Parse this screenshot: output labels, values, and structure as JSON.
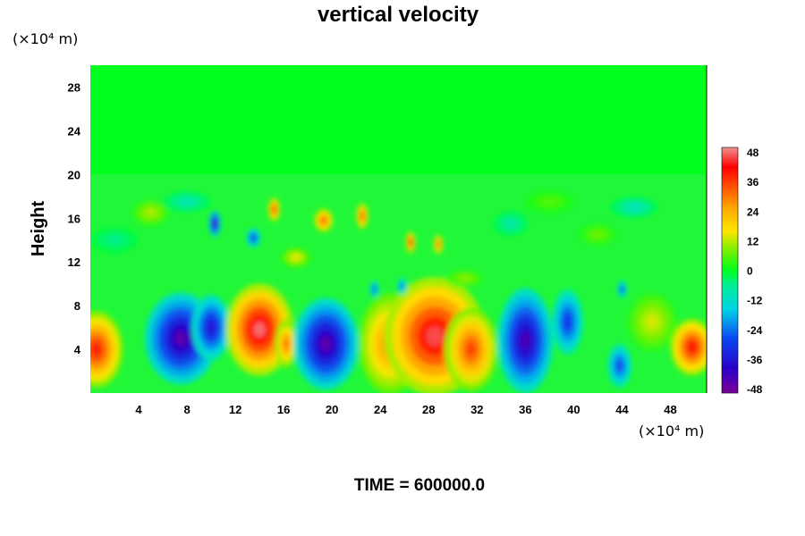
{
  "chart_data": {
    "type": "heatmap",
    "title": "vertical velocity",
    "ylabel": "Height",
    "x_unit": "(×10⁴ m)",
    "y_unit": "(×10⁴ m)",
    "x_ticks": [
      "4",
      "8",
      "12",
      "16",
      "20",
      "24",
      "28",
      "32",
      "36",
      "40",
      "44",
      "48"
    ],
    "y_ticks": [
      "4",
      "8",
      "12",
      "16",
      "20",
      "24",
      "28"
    ],
    "xlim": [
      0,
      51
    ],
    "ylim": [
      0,
      30
    ],
    "colorbar": {
      "ticks": [
        "48",
        "36",
        "24",
        "12",
        "0",
        "-12",
        "-24",
        "-36",
        "-48"
      ],
      "range": [
        -48,
        48
      ]
    },
    "cells": [
      {
        "x": 0.5,
        "y": 4,
        "rx": 2.2,
        "ry": 3.5,
        "v": 38
      },
      {
        "x": 7.5,
        "y": 5.0,
        "rx": 3.0,
        "ry": 4.2,
        "v": -44
      },
      {
        "x": 10.0,
        "y": 6.0,
        "rx": 1.6,
        "ry": 3.0,
        "v": -36
      },
      {
        "x": 14.0,
        "y": 5.8,
        "rx": 2.8,
        "ry": 4.2,
        "v": 46
      },
      {
        "x": 16.2,
        "y": 4.5,
        "rx": 0.9,
        "ry": 2.2,
        "v": 30
      },
      {
        "x": 19.5,
        "y": 4.5,
        "rx": 2.7,
        "ry": 4.2,
        "v": -44
      },
      {
        "x": 24.8,
        "y": 4.5,
        "rx": 2.6,
        "ry": 4.6,
        "v": 28
      },
      {
        "x": 28.5,
        "y": 5.2,
        "rx": 4.2,
        "ry": 5.4,
        "v": 44
      },
      {
        "x": 31.5,
        "y": 4.0,
        "rx": 2.2,
        "ry": 3.8,
        "v": 34
      },
      {
        "x": 36.0,
        "y": 4.8,
        "rx": 2.3,
        "ry": 4.8,
        "v": -42
      },
      {
        "x": 39.5,
        "y": 6.5,
        "rx": 1.3,
        "ry": 3.0,
        "v": -30
      },
      {
        "x": 43.8,
        "y": 2.5,
        "rx": 1.0,
        "ry": 2.0,
        "v": -28
      },
      {
        "x": 46.5,
        "y": 6.5,
        "rx": 2.0,
        "ry": 2.6,
        "v": 14
      },
      {
        "x": 49.8,
        "y": 4.2,
        "rx": 1.8,
        "ry": 2.6,
        "v": 40
      },
      {
        "x": 5.0,
        "y": 16.5,
        "rx": 1.5,
        "ry": 1.2,
        "v": 12
      },
      {
        "x": 10.3,
        "y": 15.5,
        "rx": 0.5,
        "ry": 1.2,
        "v": -42
      },
      {
        "x": 13.5,
        "y": 14.2,
        "rx": 0.6,
        "ry": 0.9,
        "v": -30
      },
      {
        "x": 15.2,
        "y": 16.8,
        "rx": 0.5,
        "ry": 1.1,
        "v": 36
      },
      {
        "x": 19.3,
        "y": 15.8,
        "rx": 0.8,
        "ry": 1.1,
        "v": 32
      },
      {
        "x": 22.5,
        "y": 16.2,
        "rx": 0.5,
        "ry": 1.2,
        "v": 34
      },
      {
        "x": 26.5,
        "y": 13.8,
        "rx": 0.4,
        "ry": 1.0,
        "v": 38
      },
      {
        "x": 28.8,
        "y": 13.6,
        "rx": 0.4,
        "ry": 0.9,
        "v": 32
      },
      {
        "x": 17.0,
        "y": 12.4,
        "rx": 1.2,
        "ry": 0.9,
        "v": 16
      },
      {
        "x": 34.8,
        "y": 15.5,
        "rx": 1.5,
        "ry": 1.2,
        "v": -8
      },
      {
        "x": 45.0,
        "y": 17.0,
        "rx": 2.0,
        "ry": 1.0,
        "v": -10
      },
      {
        "x": 42.0,
        "y": 14.5,
        "rx": 1.5,
        "ry": 1.0,
        "v": 8
      },
      {
        "x": 8.0,
        "y": 17.5,
        "rx": 2.0,
        "ry": 1.0,
        "v": -9
      },
      {
        "x": 23.5,
        "y": 9.5,
        "rx": 0.4,
        "ry": 0.8,
        "v": -26
      },
      {
        "x": 25.8,
        "y": 9.8,
        "rx": 0.4,
        "ry": 0.8,
        "v": -24
      },
      {
        "x": 44.0,
        "y": 9.5,
        "rx": 0.4,
        "ry": 0.8,
        "v": -28
      },
      {
        "x": 31.0,
        "y": 10.5,
        "rx": 1.5,
        "ry": 0.8,
        "v": 10
      },
      {
        "x": 2.0,
        "y": 14.0,
        "rx": 2.0,
        "ry": 1.2,
        "v": -6
      },
      {
        "x": 38.0,
        "y": 17.5,
        "rx": 2.0,
        "ry": 1.0,
        "v": 6
      }
    ]
  },
  "footer": {
    "time_label": "TIME = 600000.0"
  }
}
